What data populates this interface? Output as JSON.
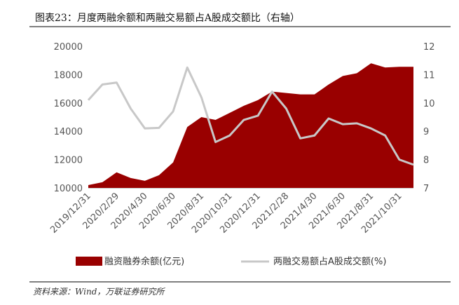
{
  "page": {
    "title": "图表23：月度两融余额和两融交易额占A股成交额比（右轴）",
    "source": "资料来源：Wind，万联证券研究所"
  },
  "colors": {
    "area": "#990000",
    "line": "#c8c8c8",
    "axis": "#999999",
    "border": "#555555"
  },
  "chart_data": {
    "type": "area",
    "x": [
      "2019/12/31",
      "2020/1/31",
      "2020/2/29",
      "2020/3/31",
      "2020/4/30",
      "2020/5/31",
      "2020/6/30",
      "2020/7/31",
      "2020/8/31",
      "2020/9/30",
      "2020/10/31",
      "2020/11/30",
      "2020/12/31",
      "2021/1/31",
      "2021/2/28",
      "2021/3/31",
      "2021/4/30",
      "2021/5/31",
      "2021/6/30",
      "2021/7/31",
      "2021/8/31",
      "2021/9/30",
      "2021/10/31",
      "2021/11/30"
    ],
    "x_tick_labels": [
      "2019/12/31",
      "2020/2/29",
      "2020/4/30",
      "2020/6/30",
      "2020/8/31",
      "2020/10/31",
      "2020/12/31",
      "2021/2/28",
      "2021/4/30",
      "2021/6/30",
      "2021/8/31",
      "2021/10/31"
    ],
    "series": [
      {
        "name": "融资融券余额(亿元)",
        "type": "area",
        "axis": "left",
        "values": [
          10200,
          10400,
          11100,
          10700,
          10500,
          10900,
          11800,
          14300,
          15000,
          14800,
          15300,
          15800,
          16200,
          16800,
          16700,
          16600,
          16600,
          17300,
          17900,
          18100,
          18800,
          18500,
          18550,
          18550
        ]
      },
      {
        "name": "两融交易额占A股成交额(%)",
        "type": "line",
        "axis": "right",
        "values": [
          10.1,
          10.65,
          10.72,
          9.8,
          9.1,
          9.12,
          9.7,
          11.25,
          10.2,
          8.62,
          8.85,
          9.4,
          9.55,
          10.4,
          9.8,
          8.75,
          8.85,
          9.45,
          9.25,
          9.28,
          9.1,
          8.85,
          8.0,
          7.82
        ]
      }
    ],
    "ylim_left": [
      10000,
      20000
    ],
    "yticks_left": [
      "10000",
      "12000",
      "14000",
      "16000",
      "18000",
      "20000"
    ],
    "ylim_right": [
      7,
      12
    ],
    "yticks_right": [
      "7",
      "8",
      "9",
      "10",
      "11",
      "12"
    ],
    "legend_position": "bottom",
    "grid": false
  }
}
